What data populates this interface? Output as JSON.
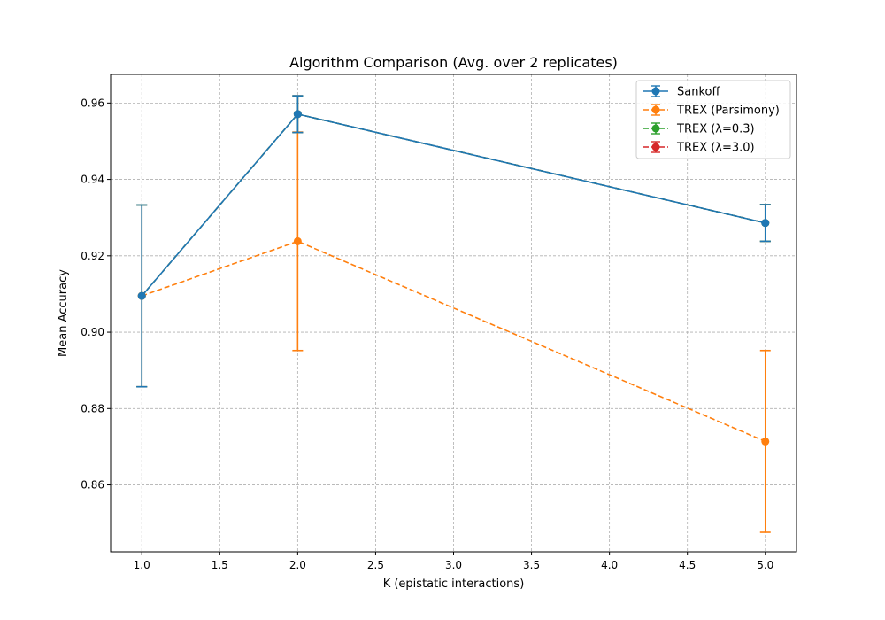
{
  "chart_data": {
    "type": "line",
    "title": "Algorithm Comparison (Avg. over 2 replicates)",
    "xlabel": "K (epistatic interactions)",
    "ylabel": "Mean Accuracy",
    "xlim": [
      0.8,
      5.2
    ],
    "ylim": [
      0.8425,
      0.9675
    ],
    "xticks": [
      1.0,
      1.5,
      2.0,
      2.5,
      3.0,
      3.5,
      4.0,
      4.5,
      5.0
    ],
    "xtick_labels": [
      "1.0",
      "1.5",
      "2.0",
      "2.5",
      "3.0",
      "3.5",
      "4.0",
      "4.5",
      "5.0"
    ],
    "yticks": [
      0.86,
      0.88,
      0.9,
      0.92,
      0.94,
      0.96
    ],
    "ytick_labels": [
      "0.86",
      "0.88",
      "0.90",
      "0.92",
      "0.94",
      "0.96"
    ],
    "grid": true,
    "legend_position": "top-right",
    "x": [
      1.0,
      2.0,
      5.0
    ],
    "series": [
      {
        "name": "TREX (λ=3.0)",
        "color": "#d62728",
        "dash": "dashed",
        "y": [
          0.9095,
          0.9571,
          0.9286
        ],
        "err": [
          0.0238,
          0.0048,
          0.0048
        ]
      },
      {
        "name": "TREX (λ=0.3)",
        "color": "#2ca02c",
        "dash": "dashed",
        "y": [
          0.9095,
          0.9571,
          0.9286
        ],
        "err": [
          0.0238,
          0.0048,
          0.0048
        ]
      },
      {
        "name": "TREX (Parsimony)",
        "color": "#ff7f0e",
        "dash": "dashed",
        "y": [
          0.9095,
          0.9238,
          0.8714
        ],
        "err": [
          0.0,
          0.0286,
          0.0238
        ]
      },
      {
        "name": "Sankoff",
        "color": "#1f77b4",
        "dash": "solid",
        "y": [
          0.9095,
          0.9571,
          0.9286
        ],
        "err": [
          0.0238,
          0.0048,
          0.0048
        ]
      }
    ],
    "legend_order": [
      "Sankoff",
      "TREX (Parsimony)",
      "TREX (λ=0.3)",
      "TREX (λ=3.0)"
    ]
  }
}
